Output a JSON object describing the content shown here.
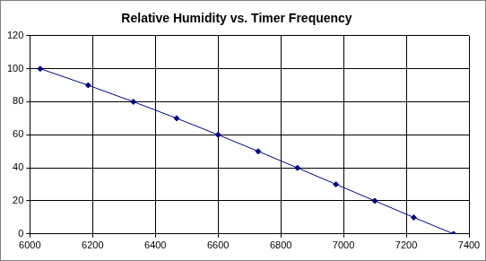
{
  "chart_data": {
    "type": "line",
    "title": "Relative Humidity vs. Timer Frequency",
    "x": [
      6033,
      6186,
      6330,
      6468,
      6600,
      6728,
      6853,
      6976,
      7100,
      7224,
      7351
    ],
    "values": [
      100,
      90,
      80,
      70,
      60,
      50,
      40,
      30,
      20,
      10,
      0
    ],
    "color": "#000080",
    "marker": "diamond",
    "xlim": [
      6000,
      7400
    ],
    "xticks": [
      6000,
      6200,
      6400,
      6600,
      6800,
      7000,
      7200,
      7400
    ],
    "ylim": [
      0,
      120
    ],
    "yticks": [
      0,
      20,
      40,
      60,
      80,
      100,
      120
    ],
    "grid": true
  }
}
